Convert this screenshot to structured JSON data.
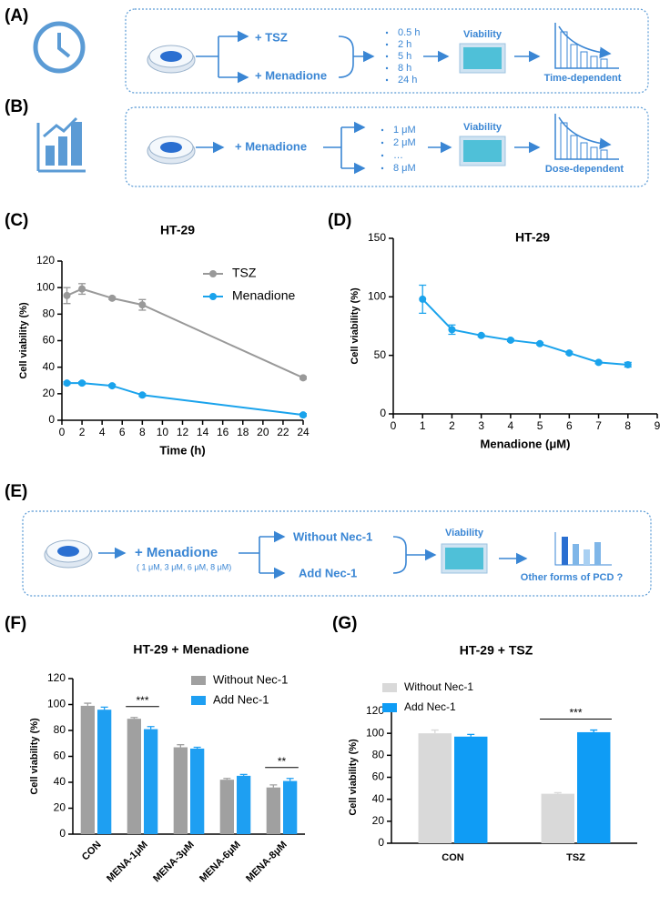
{
  "panels": [
    "(A)",
    "(B)",
    "(C)",
    "(D)",
    "(E)",
    "(F)",
    "(G)"
  ],
  "schemes": [
    {
      "treatments": [
        "+ TSZ",
        "+ Menadione"
      ],
      "conditions": [
        "0.5 h",
        "2 h",
        "5 h",
        "8 h",
        "24 h"
      ],
      "readout": "Viability",
      "result": "Time-dependent"
    },
    {
      "treatments": [
        "+ Menadione"
      ],
      "conditions": [
        "1 μM",
        "2 μM",
        "…",
        "8 μM"
      ],
      "readout": "Viability",
      "result": "Dose-dependent"
    },
    {
      "treatments": [
        "+ Menadione"
      ],
      "doses": "( 1 μM, 3 μM, 6 μM, 8 μM)",
      "branches": [
        "Without Nec-1",
        "Add Nec-1"
      ],
      "readout": "Viability",
      "result": "Other forms of PCD ?"
    }
  ],
  "chart_data": [
    {
      "type": "line",
      "title": "HT-29",
      "xlabel": "Time (h)",
      "ylabel": "Cell viability (%)",
      "x": [
        0.5,
        2,
        5,
        8,
        24
      ],
      "series": [
        {
          "name": "TSZ",
          "color": "#999999",
          "values": [
            94,
            99,
            92,
            87,
            32
          ],
          "errors": [
            6,
            4,
            1,
            4,
            1
          ]
        },
        {
          "name": "Menadione",
          "color": "#1aa3ec",
          "values": [
            28,
            28,
            26,
            19,
            4
          ],
          "errors": [
            1,
            1,
            1,
            1,
            1
          ]
        }
      ],
      "xlim": [
        0,
        24
      ],
      "xticks": [
        0,
        2,
        4,
        6,
        8,
        10,
        12,
        14,
        16,
        18,
        20,
        22,
        24
      ],
      "ylim": [
        0,
        120
      ],
      "yticks": [
        0,
        20,
        40,
        60,
        80,
        100,
        120
      ],
      "legend": "upper right"
    },
    {
      "type": "line",
      "title": "HT-29",
      "xlabel": "Menadione (μM)",
      "ylabel": "Cell viability (%)",
      "x": [
        1,
        2,
        3,
        4,
        5,
        6,
        7,
        8
      ],
      "series": [
        {
          "color": "#1aa3ec",
          "values": [
            98,
            72,
            67,
            63,
            60,
            52,
            44,
            42
          ],
          "errors": [
            12,
            4,
            1,
            1,
            1,
            1,
            1,
            2
          ]
        }
      ],
      "xlim": [
        0,
        9
      ],
      "xticks": [
        0,
        1,
        2,
        3,
        4,
        5,
        6,
        7,
        8,
        9
      ],
      "ylim": [
        0,
        150
      ],
      "yticks": [
        0,
        50,
        100,
        150
      ]
    },
    {
      "type": "bar",
      "title": "HT-29 + Menadione",
      "ylabel": "Cell viability (%)",
      "categories": [
        "CON",
        "MENA-1μM",
        "MENA-3μM",
        "MENA-6μM",
        "MENA-8μM"
      ],
      "series": [
        {
          "name": "Without Nec-1",
          "color": "#a0a0a0",
          "values": [
            99,
            89,
            67,
            42,
            36
          ],
          "errors": [
            2,
            1,
            2,
            1,
            2
          ]
        },
        {
          "name": "Add Nec-1",
          "color": "#1e9ff2",
          "values": [
            96,
            81,
            66,
            45,
            41
          ],
          "errors": [
            2,
            2,
            1,
            1,
            2
          ]
        }
      ],
      "ylim": [
        0,
        120
      ],
      "yticks": [
        0,
        20,
        40,
        60,
        80,
        100,
        120
      ],
      "legend": "upper right",
      "annotations": [
        "***",
        "**"
      ]
    },
    {
      "type": "bar",
      "title": "HT-29 + TSZ",
      "ylabel": "Cell viability (%)",
      "categories": [
        "CON",
        "TSZ"
      ],
      "series": [
        {
          "name": "Without Nec-1",
          "color": "#d9d9d9",
          "values": [
            100,
            45
          ],
          "errors": [
            3,
            1
          ]
        },
        {
          "name": "Add Nec-1",
          "color": "#0f9cf5",
          "values": [
            97,
            101
          ],
          "errors": [
            2,
            2
          ]
        }
      ],
      "ylim": [
        0,
        120
      ],
      "yticks": [
        0,
        20,
        40,
        60,
        80,
        100,
        120
      ],
      "legend": "upper left",
      "annotations": [
        "***"
      ]
    }
  ]
}
